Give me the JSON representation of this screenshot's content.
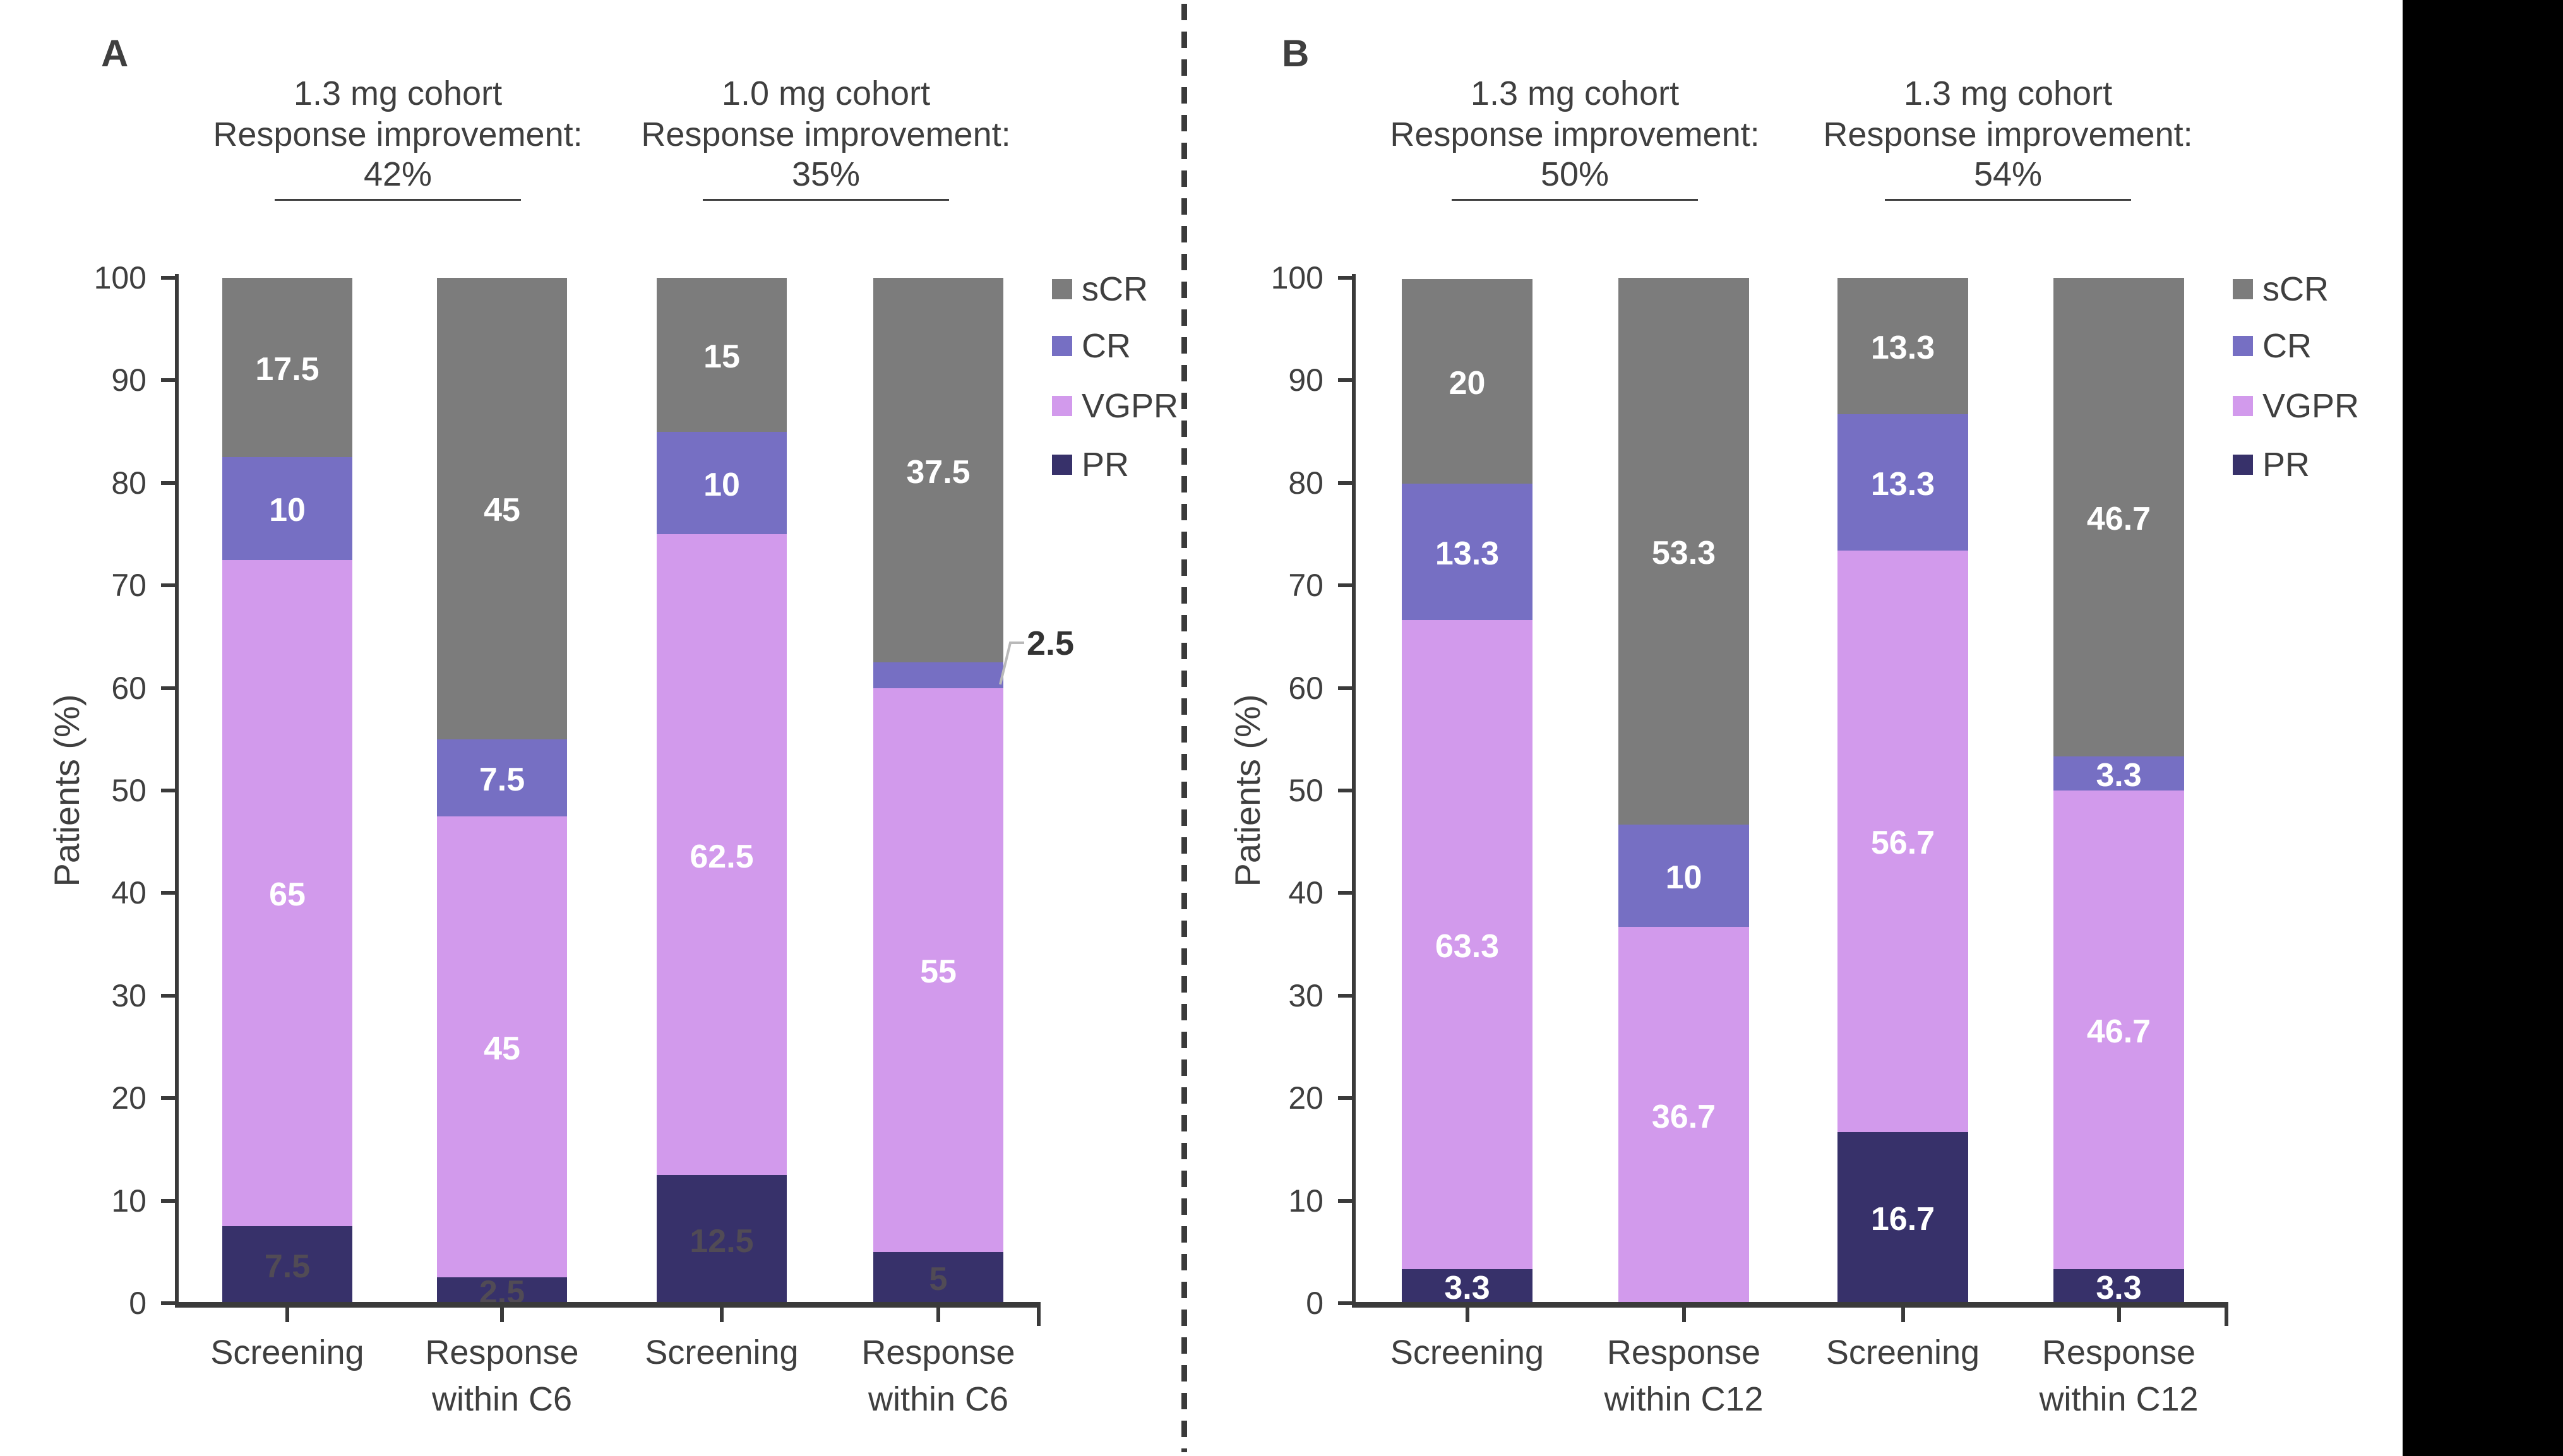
{
  "colors": {
    "sCR": "#7c7c7c",
    "CR": "#766fc3",
    "VGPR": "#d29aec",
    "PR": "#37316a",
    "axis": "#3a3a3a",
    "text": "#3f3f3f",
    "callout_text": "#333333",
    "callout_leader": "#b9b9b9",
    "right_strip": "#000000"
  },
  "chart_data": [
    {
      "type": "bar",
      "stacked": true,
      "panel_label": "A",
      "title_groups": [
        {
          "cohort": "1.3 mg cohort",
          "subtitle": "Response improvement:",
          "value": "42%"
        },
        {
          "cohort": "1.0 mg cohort",
          "subtitle": "Response improvement:",
          "value": "35%"
        }
      ],
      "categories": [
        "Screening",
        "Response within C6",
        "Screening",
        "Response within C6"
      ],
      "category_lines": [
        [
          "Screening"
        ],
        [
          "Response",
          "within C6"
        ],
        [
          "Screening"
        ],
        [
          "Response",
          "within C6"
        ]
      ],
      "stack_order": [
        "PR",
        "VGPR",
        "CR",
        "sCR"
      ],
      "series": [
        {
          "name": "PR",
          "values": [
            7.5,
            2.5,
            12.5,
            5
          ]
        },
        {
          "name": "VGPR",
          "values": [
            65,
            45,
            62.5,
            55
          ]
        },
        {
          "name": "CR",
          "values": [
            10,
            7.5,
            10,
            2.5
          ]
        },
        {
          "name": "sCR",
          "values": [
            17.5,
            45,
            15,
            37.5
          ]
        }
      ],
      "ylabel": "Patients (%)",
      "ylim": [
        0,
        100
      ],
      "yticks": [
        0,
        10,
        20,
        30,
        40,
        50,
        60,
        70,
        80,
        90,
        100
      ],
      "legend": [
        "sCR",
        "CR",
        "VGPR",
        "PR"
      ],
      "legend_position": "right",
      "series_label_colors": {
        "PR": "#514b55"
      },
      "callouts": [
        {
          "bar_index": 3,
          "series": "CR",
          "text": "2.5"
        }
      ]
    },
    {
      "type": "bar",
      "stacked": true,
      "panel_label": "B",
      "title_groups": [
        {
          "cohort": "1.3 mg cohort",
          "subtitle": "Response improvement:",
          "value": "50%"
        },
        {
          "cohort": "1.3 mg cohort",
          "subtitle": "Response improvement:",
          "value": "54%"
        }
      ],
      "categories": [
        "Screening",
        "Response within C12",
        "Screening",
        "Response within C12"
      ],
      "category_lines": [
        [
          "Screening"
        ],
        [
          "Response",
          "within C12"
        ],
        [
          "Screening"
        ],
        [
          "Response",
          "within C12"
        ]
      ],
      "stack_order": [
        "PR",
        "VGPR",
        "CR",
        "sCR"
      ],
      "series": [
        {
          "name": "PR",
          "values": [
            3.3,
            0,
            16.7,
            3.3
          ]
        },
        {
          "name": "VGPR",
          "values": [
            63.3,
            36.7,
            56.7,
            46.7
          ]
        },
        {
          "name": "CR",
          "values": [
            13.3,
            10,
            13.3,
            3.3
          ]
        },
        {
          "name": "sCR",
          "values": [
            20,
            53.3,
            13.3,
            46.7
          ]
        }
      ],
      "ylabel": "Patients (%)",
      "ylim": [
        0,
        100
      ],
      "yticks": [
        0,
        10,
        20,
        30,
        40,
        50,
        60,
        70,
        80,
        90,
        100
      ],
      "legend": [
        "sCR",
        "CR",
        "VGPR",
        "PR"
      ],
      "legend_position": "right",
      "series_label_colors": {},
      "callouts": []
    }
  ]
}
